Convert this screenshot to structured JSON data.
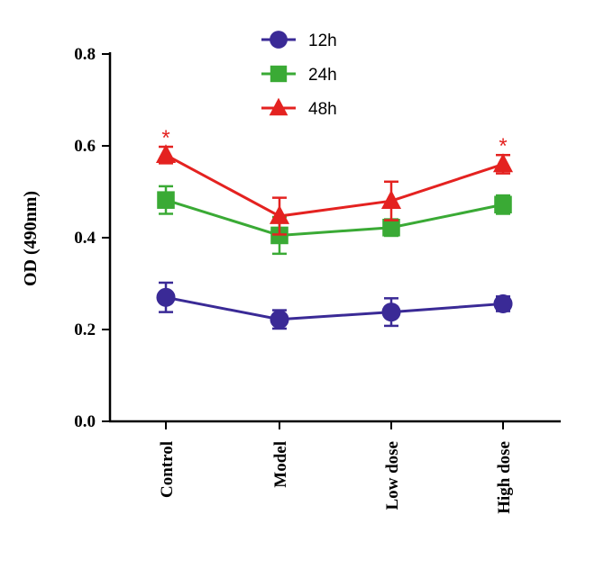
{
  "chart_data": {
    "type": "line",
    "title": "",
    "xlabel": "",
    "ylabel": "OD (490nm)",
    "ylim": [
      0,
      0.8
    ],
    "yticks": [
      "0.0",
      "0.2",
      "0.4",
      "0.6",
      "0.8"
    ],
    "ytick_values": [
      0,
      0.2,
      0.4,
      0.6,
      0.8
    ],
    "categories": [
      "Control",
      "Model",
      "Low dose",
      "High dose"
    ],
    "grid": false,
    "legend_position": "top-center",
    "series": [
      {
        "name": "12h",
        "marker": "circle",
        "color": "#3a2a96",
        "values": [
          0.27,
          0.222,
          0.238,
          0.256
        ],
        "errors": [
          0.032,
          0.02,
          0.03,
          0.016
        ]
      },
      {
        "name": "24h",
        "marker": "square",
        "color": "#3aaa35",
        "values": [
          0.482,
          0.405,
          0.422,
          0.472
        ],
        "errors": [
          0.03,
          0.04,
          0.018,
          0.02
        ]
      },
      {
        "name": "48h",
        "marker": "triangle",
        "color": "#e42220",
        "values": [
          0.58,
          0.447,
          0.48,
          0.56
        ],
        "errors": [
          0.018,
          0.04,
          0.042,
          0.02
        ]
      }
    ],
    "annotations": [
      {
        "text": "*",
        "category": "Control",
        "series": "48h"
      },
      {
        "text": "*",
        "category": "High dose",
        "series": "48h"
      }
    ]
  }
}
